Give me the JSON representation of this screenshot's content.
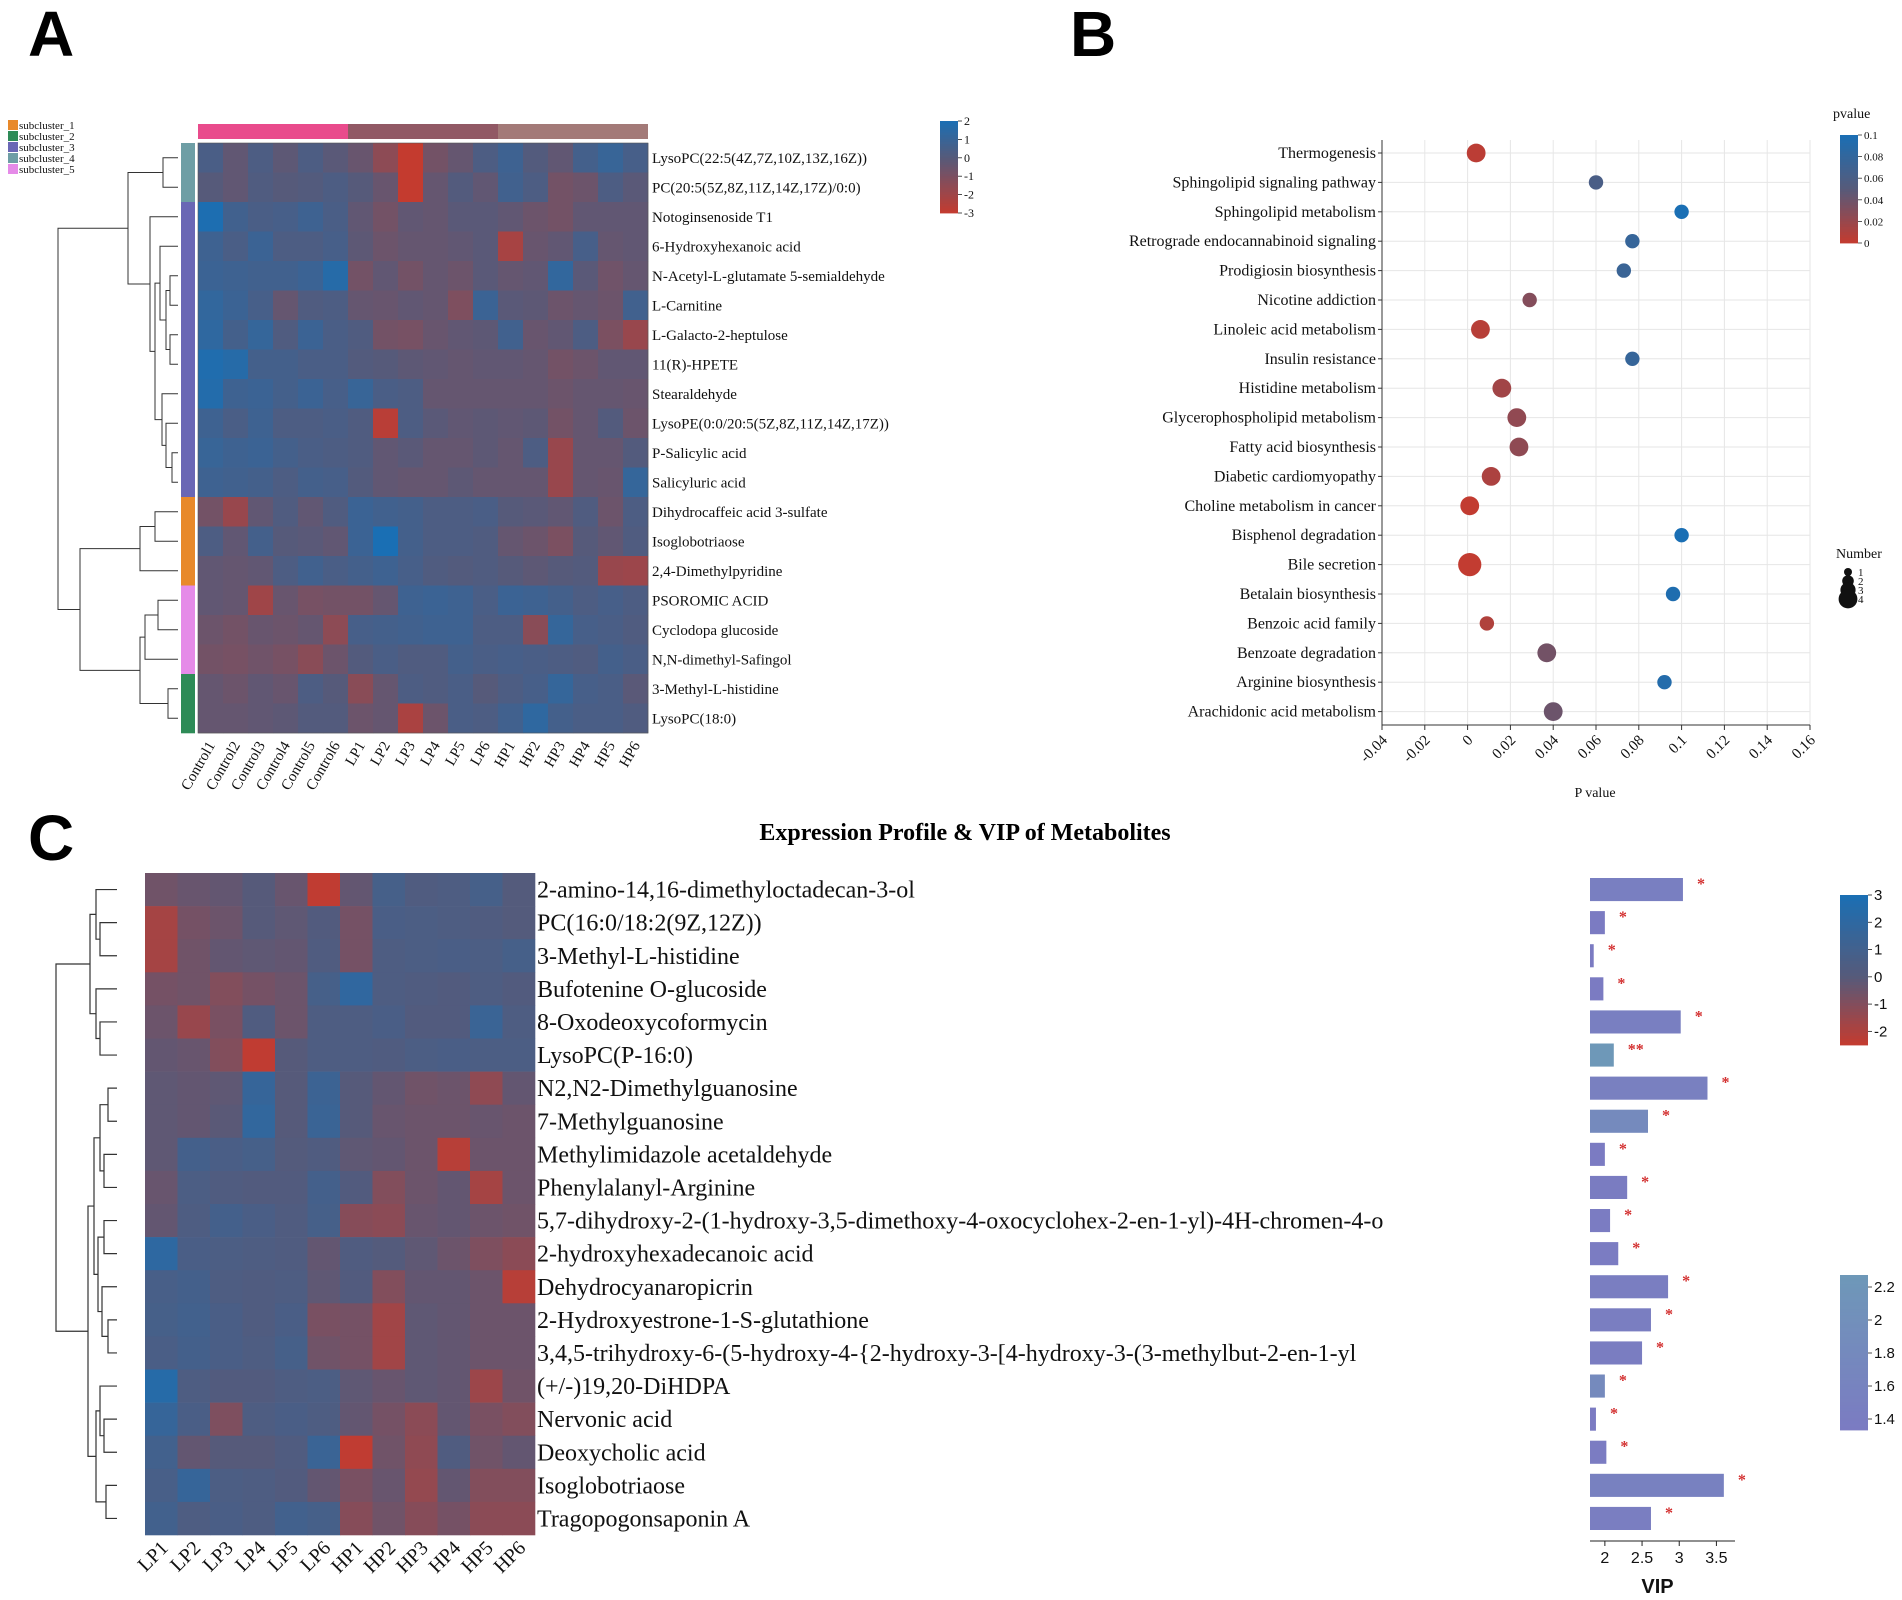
{
  "panels": {
    "A": {
      "letter": "A"
    },
    "B": {
      "letter": "B"
    },
    "C": {
      "letter": "C",
      "title": "Expression Profile & VIP of Metabolites"
    }
  },
  "colors": {
    "low": "#c43b2f",
    "mid": "#565a7a",
    "high": "#1a6fb4",
    "vip_low": "#7b7bc2",
    "vip_high": "#6e98b8",
    "star": "#d32f2f",
    "grid": "#e6e6e6",
    "group_control": "#e94b8c",
    "group_lp": "#915965",
    "group_hp": "#a37a78"
  },
  "chart_data": [
    {
      "id": "A",
      "type": "heatmap",
      "columns": [
        "Control1",
        "Control2",
        "Control3",
        "Control4",
        "Control5",
        "Control6",
        "LP1",
        "LP2",
        "LP3",
        "LP4",
        "LP5",
        "LP6",
        "HP1",
        "HP2",
        "HP3",
        "HP4",
        "HP5",
        "HP6"
      ],
      "column_groups": [
        {
          "name": "Control",
          "count": 6,
          "color": "#e94b8c"
        },
        {
          "name": "LP",
          "count": 6,
          "color": "#915965"
        },
        {
          "name": "HP",
          "count": 6,
          "color": "#a37a78"
        }
      ],
      "rows": [
        "LysoPC(22:5(4Z,7Z,10Z,13Z,16Z))",
        "PC(20:5(5Z,8Z,11Z,14Z,17Z)/0:0)",
        "Notoginsenoside T1",
        "6-Hydroxyhexanoic acid",
        "N-Acetyl-L-glutamate 5-semialdehyde",
        "L-Carnitine",
        "L-Galacto-2-heptulose",
        "11(R)-HPETE",
        "Stearaldehyde",
        "LysoPE(0:0/20:5(5Z,8Z,11Z,14Z,17Z))",
        "P-Salicylic acid",
        "Salicyluric acid",
        "Dihydrocaffeic acid 3-sulfate",
        "Isoglobotriaose",
        "2,4-Dimethylpyridine",
        "PSOROMIC ACID",
        "Cyclodopa glucoside",
        "N,N-dimethyl-Safingol",
        "3-Methyl-L-histidine",
        "LysoPC(18:0)"
      ],
      "row_subclusters": [
        4,
        4,
        3,
        3,
        3,
        3,
        3,
        3,
        3,
        3,
        3,
        3,
        1,
        1,
        1,
        5,
        5,
        5,
        2,
        2
      ],
      "subcluster_legend": [
        {
          "label": "subcluster_1",
          "color": "#e8892a"
        },
        {
          "label": "subcluster_2",
          "color": "#2e8b57"
        },
        {
          "label": "subcluster_3",
          "color": "#6a67b5"
        },
        {
          "label": "subcluster_4",
          "color": "#6e9ea5"
        },
        {
          "label": "subcluster_5",
          "color": "#e58be8"
        }
      ],
      "color_scale": {
        "min": -3,
        "max": 2,
        "ticks": [
          "2",
          "1",
          "0",
          "-1",
          "-2",
          "-3"
        ]
      },
      "values": [
        [
          0.4,
          -0.3,
          0.3,
          -0.2,
          0.3,
          -0.1,
          -0.5,
          -1.5,
          -3.0,
          -0.8,
          -0.4,
          0.3,
          0.8,
          0.1,
          -0.3,
          0.6,
          1.0,
          0.5
        ],
        [
          0.0,
          -0.3,
          0.2,
          0.0,
          0.1,
          0.3,
          0.0,
          -0.5,
          -3.0,
          -0.4,
          0.1,
          -0.3,
          0.7,
          0.3,
          -0.8,
          -0.6,
          0.3,
          -0.1
        ],
        [
          1.9,
          0.7,
          0.4,
          0.5,
          0.8,
          0.4,
          -0.3,
          -0.8,
          -0.3,
          -0.4,
          -0.1,
          -0.1,
          -0.3,
          -0.6,
          -0.8,
          -0.3,
          -0.3,
          -0.3
        ],
        [
          0.8,
          0.4,
          0.9,
          0.3,
          0.3,
          0.5,
          -0.2,
          -0.6,
          -0.4,
          -0.4,
          -0.3,
          -0.1,
          -2.2,
          -0.5,
          -0.3,
          0.5,
          -0.4,
          -0.3
        ],
        [
          0.9,
          0.8,
          0.7,
          0.7,
          0.9,
          1.6,
          -0.8,
          -0.3,
          -0.8,
          -0.4,
          -0.6,
          -0.1,
          -0.4,
          -0.3,
          1.2,
          -0.1,
          -0.7,
          -0.4
        ],
        [
          1.2,
          0.9,
          0.5,
          -0.4,
          0.2,
          0.3,
          -0.4,
          -0.5,
          -0.3,
          -0.4,
          -1.1,
          0.9,
          -0.1,
          -0.2,
          -0.6,
          -0.4,
          -0.6,
          0.7
        ],
        [
          1.3,
          0.6,
          1.1,
          0.2,
          0.9,
          0.4,
          0.2,
          -0.8,
          -0.9,
          -0.5,
          -0.3,
          -0.2,
          0.7,
          -0.5,
          -0.3,
          0.3,
          -1.0,
          -1.8
        ],
        [
          1.8,
          1.6,
          0.6,
          0.6,
          0.4,
          0.4,
          0.1,
          0.0,
          -0.2,
          -0.3,
          -0.4,
          -0.3,
          -0.3,
          -0.4,
          -0.8,
          -0.6,
          -0.3,
          -0.3
        ],
        [
          1.7,
          0.8,
          0.9,
          0.6,
          0.9,
          0.5,
          1.0,
          0.4,
          0.3,
          -0.4,
          -0.4,
          -0.4,
          -0.4,
          -0.4,
          -0.6,
          -0.4,
          -0.4,
          -0.5
        ],
        [
          0.8,
          0.4,
          0.8,
          0.3,
          0.3,
          0.4,
          0.2,
          -2.7,
          0.3,
          -0.1,
          -0.3,
          -0.2,
          -0.3,
          -0.2,
          -0.8,
          -0.4,
          0.1,
          -0.6
        ],
        [
          1.0,
          0.8,
          0.9,
          0.6,
          0.4,
          0.3,
          0.2,
          -0.3,
          -0.1,
          -0.4,
          -0.4,
          -0.2,
          -0.4,
          0.3,
          -1.8,
          -0.4,
          -0.4,
          0.1
        ],
        [
          0.8,
          0.7,
          0.6,
          0.3,
          0.6,
          0.5,
          0.1,
          -0.3,
          -0.4,
          -0.4,
          -0.2,
          -0.4,
          -0.4,
          -0.4,
          -1.8,
          -0.4,
          -0.5,
          1.1
        ],
        [
          -0.8,
          -1.8,
          -0.3,
          0.2,
          -0.3,
          0.2,
          0.9,
          0.7,
          0.6,
          0.3,
          0.3,
          0.4,
          0.0,
          -0.1,
          -0.3,
          0.2,
          -0.6,
          0.3
        ],
        [
          0.3,
          -0.3,
          0.6,
          0.0,
          -0.1,
          -0.3,
          0.9,
          2.0,
          0.6,
          0.3,
          0.3,
          0.2,
          -0.4,
          -0.6,
          -1.0,
          0.0,
          -0.3,
          0.2
        ],
        [
          -0.3,
          -0.4,
          -0.3,
          0.3,
          0.7,
          0.4,
          0.6,
          0.8,
          0.5,
          0.2,
          0.1,
          0.2,
          0.0,
          -0.2,
          0.0,
          0.1,
          -1.8,
          -1.9
        ],
        [
          -0.3,
          -0.4,
          -2.0,
          -0.5,
          -0.9,
          -0.8,
          -0.8,
          -0.4,
          0.8,
          0.9,
          0.8,
          0.4,
          0.9,
          0.8,
          0.6,
          0.3,
          0.5,
          0.3
        ],
        [
          -0.6,
          -0.8,
          -0.5,
          -0.6,
          -0.4,
          -1.5,
          0.5,
          0.6,
          0.7,
          0.8,
          0.8,
          0.3,
          0.3,
          -1.4,
          1.1,
          0.5,
          0.4,
          0.2
        ],
        [
          -0.8,
          -0.9,
          -0.7,
          -0.9,
          -1.4,
          -0.6,
          0.1,
          0.4,
          0.2,
          0.2,
          0.6,
          0.4,
          0.5,
          0.4,
          0.3,
          0.2,
          0.6,
          0.4
        ],
        [
          -0.4,
          -0.6,
          -0.3,
          -0.5,
          0.3,
          0.0,
          -1.4,
          -0.4,
          0.3,
          0.2,
          0.4,
          0.0,
          0.3,
          0.5,
          1.1,
          0.5,
          0.4,
          -0.1
        ],
        [
          -0.4,
          -0.4,
          -0.3,
          -0.2,
          0.1,
          0.1,
          -0.6,
          -0.4,
          -2.3,
          -0.6,
          0.4,
          0.3,
          0.7,
          1.3,
          0.6,
          0.4,
          0.4,
          0.2
        ]
      ]
    },
    {
      "id": "B",
      "type": "scatter",
      "title": "",
      "xlabel": "P value",
      "ylabel": "",
      "xlim": [
        -0.04,
        0.16
      ],
      "xticks": [
        -0.04,
        -0.02,
        0,
        0.02,
        0.04,
        0.06,
        0.08,
        0.1,
        0.12,
        0.14,
        0.16
      ],
      "xtick_labels": [
        "-0.04",
        "-0.02",
        "0",
        "0.02",
        "0.04",
        "0.06",
        "0.08",
        "0.1",
        "0.12",
        "0.14",
        "0.16"
      ],
      "categories": [
        "Thermogenesis",
        "Sphingolipid signaling pathway",
        "Sphingolipid metabolism",
        "Retrograde endocannabinoid signaling",
        "Prodigiosin biosynthesis",
        "Nicotine addiction",
        "Linoleic acid metabolism",
        "Insulin resistance",
        "Histidine metabolism",
        "Glycerophospholipid metabolism",
        "Fatty acid biosynthesis",
        "Diabetic cardiomyopathy",
        "Choline metabolism in cancer",
        "Bisphenol degradation",
        "Bile secretion",
        "Betalain biosynthesis",
        "Benzoic acid family",
        "Benzoate degradation",
        "Arginine biosynthesis",
        "Arachidonic acid metabolism"
      ],
      "pvalues": [
        0.004,
        0.06,
        0.1,
        0.077,
        0.073,
        0.029,
        0.006,
        0.077,
        0.016,
        0.023,
        0.024,
        0.011,
        0.001,
        0.1,
        0.001,
        0.096,
        0.009,
        0.037,
        0.092,
        0.04
      ],
      "number": [
        2,
        1,
        1,
        1,
        1,
        1,
        2,
        1,
        2,
        2,
        2,
        2,
        2,
        1,
        3,
        1,
        1,
        2,
        1,
        2
      ],
      "color_legend": {
        "title": "pvalue",
        "ticks": [
          "0.1",
          "0.08",
          "0.06",
          "0.04",
          "0.02",
          "0"
        ]
      },
      "size_legend": {
        "title": "Number",
        "labels": [
          "1",
          "2",
          "3",
          "4"
        ]
      }
    },
    {
      "id": "C",
      "type": "heatmap",
      "title": "Expression Profile & VIP of Metabolites",
      "columns": [
        "LP1",
        "LP2",
        "LP3",
        "LP4",
        "LP5",
        "LP6",
        "HP1",
        "HP2",
        "HP3",
        "HP4",
        "HP5",
        "HP6"
      ],
      "rows": [
        "2-amino-14,16-dimethyloctadecan-3-ol",
        "PC(16:0/18:2(9Z,12Z))",
        "3-Methyl-L-histidine",
        "Bufotenine O-glucoside",
        "8-Oxodeoxycoformycin",
        "LysoPC(P-16:0)",
        "N2,N2-Dimethylguanosine",
        "7-Methylguanosine",
        "Methylimidazole acetaldehyde",
        "Phenylalanyl-Arginine",
        "5,7-dihydroxy-2-(1-hydroxy-3,5-dimethoxy-4-oxocyclohex-2-en-1-yl)-4H-chromen-4-o",
        "2-hydroxyhexadecanoic acid",
        "Dehydrocyanaropicrin",
        "2-Hydroxyestrone-1-S-glutathione",
        "3,4,5-trihydroxy-6-(5-hydroxy-4-{2-hydroxy-3-[4-hydroxy-3-(3-methylbut-2-en-1-yl",
        "(+/-)19,20-DiHDPA",
        "Nervonic acid",
        "Deoxycholic acid",
        "Isoglobotriaose",
        "Tragopogonsaponin A"
      ],
      "color_scale": {
        "min": -2.5,
        "max": 3,
        "ticks": [
          "3",
          "2",
          "1",
          "0",
          "-1",
          "-2"
        ]
      },
      "values": [
        [
          -0.6,
          -0.4,
          -0.3,
          0.0,
          -0.4,
          -2.4,
          -0.3,
          0.8,
          0.3,
          0.4,
          0.8,
          0.1
        ],
        [
          -1.8,
          -0.7,
          -0.5,
          0.0,
          -0.2,
          0.2,
          -0.7,
          0.6,
          0.5,
          0.4,
          0.3,
          0.1
        ],
        [
          -1.8,
          -0.6,
          -0.3,
          -0.2,
          -0.3,
          0.3,
          -0.7,
          0.4,
          0.5,
          0.6,
          0.5,
          0.8
        ],
        [
          -0.7,
          -0.6,
          -1.0,
          -0.7,
          -0.5,
          0.8,
          1.9,
          0.4,
          0.3,
          0.2,
          0.4,
          0.2
        ],
        [
          -0.5,
          -1.5,
          -0.8,
          0.3,
          -0.5,
          0.4,
          0.4,
          0.6,
          0.2,
          0.2,
          1.4,
          0.4
        ],
        [
          -0.3,
          -0.4,
          -1.0,
          -2.4,
          0.0,
          0.4,
          0.4,
          0.3,
          0.5,
          0.6,
          0.5,
          0.5
        ],
        [
          -0.2,
          -0.3,
          -0.2,
          1.6,
          0.0,
          1.3,
          0.0,
          -0.3,
          -0.6,
          -0.5,
          -1.3,
          -0.3
        ],
        [
          -0.2,
          -0.3,
          -0.1,
          1.8,
          0.0,
          1.4,
          0.0,
          -0.4,
          -0.5,
          -0.5,
          -0.4,
          -0.5
        ],
        [
          -0.2,
          0.9,
          0.6,
          0.8,
          0.1,
          0.3,
          -0.2,
          -0.3,
          -0.5,
          -2.2,
          -0.5,
          -0.5
        ],
        [
          -0.4,
          0.5,
          0.3,
          0.2,
          0.2,
          0.9,
          0.2,
          -1.0,
          -0.5,
          -0.3,
          -1.8,
          -0.5
        ],
        [
          -0.3,
          0.4,
          0.9,
          0.6,
          0.3,
          0.8,
          -1.1,
          -1.2,
          -0.4,
          -0.3,
          -0.5,
          -0.6
        ],
        [
          2.0,
          0.6,
          0.5,
          0.4,
          0.3,
          -0.3,
          0.3,
          0.1,
          -0.2,
          -0.5,
          -0.9,
          -1.2
        ],
        [
          0.7,
          0.9,
          0.4,
          0.3,
          0.4,
          -0.2,
          0.2,
          -1.0,
          -0.3,
          -0.3,
          -0.5,
          -2.2
        ],
        [
          0.8,
          1.0,
          0.6,
          0.3,
          0.6,
          -0.8,
          -0.7,
          -1.7,
          -0.2,
          -0.3,
          -0.5,
          -0.5
        ],
        [
          0.6,
          0.9,
          0.6,
          0.4,
          0.8,
          -0.6,
          -0.7,
          -1.7,
          -0.2,
          -0.3,
          -0.5,
          -0.5
        ],
        [
          2.4,
          0.4,
          0.2,
          0.2,
          0.4,
          0.5,
          -0.2,
          -0.4,
          -0.2,
          -0.3,
          -1.6,
          -0.6
        ],
        [
          1.6,
          0.6,
          -0.9,
          0.4,
          0.6,
          0.4,
          -0.3,
          -0.7,
          -1.2,
          -0.3,
          -0.8,
          -1.0
        ],
        [
          1.0,
          -0.3,
          0.0,
          0.0,
          0.3,
          1.4,
          -2.4,
          -0.6,
          -1.3,
          0.3,
          -0.6,
          -0.3
        ],
        [
          0.7,
          1.6,
          0.5,
          0.4,
          0.2,
          -0.3,
          -0.8,
          -0.4,
          -1.4,
          -0.3,
          -1.0,
          -1.0
        ],
        [
          1.0,
          0.4,
          0.6,
          0.4,
          1.0,
          0.8,
          -1.1,
          -0.6,
          -1.1,
          -0.7,
          -1.2,
          -1.2
        ]
      ],
      "vip": {
        "xlabel": "VIP",
        "xlim": [
          1.8,
          3.75
        ],
        "xticks": [
          2,
          2.5,
          3,
          3.5
        ],
        "xtick_labels": [
          "2",
          "2.5",
          "3",
          "3.5"
        ],
        "values": [
          3.05,
          2.0,
          1.85,
          1.98,
          3.02,
          2.12,
          3.38,
          2.58,
          2.0,
          2.3,
          2.07,
          2.18,
          2.85,
          2.62,
          2.5,
          2.0,
          1.88,
          2.02,
          3.6,
          2.62
        ],
        "significance": [
          "*",
          "*",
          "*",
          "*",
          "*",
          "**",
          "*",
          "*",
          "*",
          "*",
          "*",
          "*",
          "*",
          "*",
          "*",
          "*",
          "*",
          "*",
          "*",
          "*"
        ],
        "color_legend_ticks": [
          "2.2",
          "2",
          "1.8",
          "1.6",
          "1.4"
        ]
      }
    }
  ]
}
